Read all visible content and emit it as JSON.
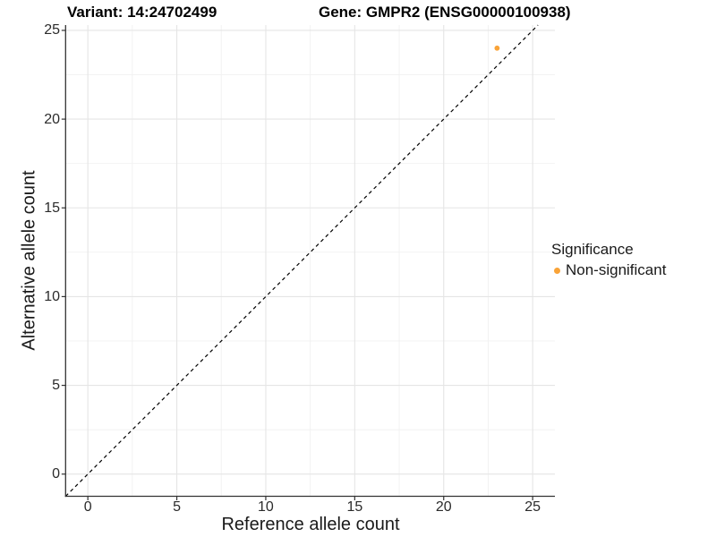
{
  "title": {
    "variant": "Variant: 14:24702499",
    "gene": "Gene: GMPR2 (ENSG00000100938)"
  },
  "axes": {
    "x_label": "Reference allele count",
    "y_label": "Alternative allele count"
  },
  "legend": {
    "title": "Significance",
    "items": [
      {
        "label": "Non-significant",
        "color": "#F9A338"
      }
    ]
  },
  "chart_data": {
    "type": "scatter",
    "title": "Variant: 14:24702499 | Gene: GMPR2 (ENSG00000100938)",
    "xlabel": "Reference allele count",
    "ylabel": "Alternative allele count",
    "xlim": [
      -1.25,
      26.25
    ],
    "ylim": [
      -1.25,
      25.3
    ],
    "x_ticks": [
      0,
      5,
      10,
      15,
      20,
      25
    ],
    "y_ticks": [
      0,
      5,
      10,
      15,
      20,
      25
    ],
    "x_minor_ticks": [
      2.5,
      7.5,
      12.5,
      17.5,
      22.5
    ],
    "y_minor_ticks": [
      2.5,
      7.5,
      12.5,
      17.5,
      22.5
    ],
    "grid": true,
    "legend_position": "right",
    "series": [
      {
        "name": "Non-significant",
        "color": "#F9A338",
        "marker": "circle",
        "points": [
          {
            "x": 23,
            "y": 24
          }
        ]
      }
    ],
    "reference_line": {
      "style": "dashed",
      "color": "#000000",
      "equation": "y = x",
      "from": [
        -1.25,
        -1.25
      ],
      "to": [
        25.3,
        25.3
      ]
    }
  },
  "colors": {
    "background": "#FFFFFF",
    "axis_line": "#333333",
    "grid_major": "#E5E5E5",
    "grid_minor": "#F1F1F1",
    "point": "#F9A338",
    "reference_line": "#000000"
  }
}
